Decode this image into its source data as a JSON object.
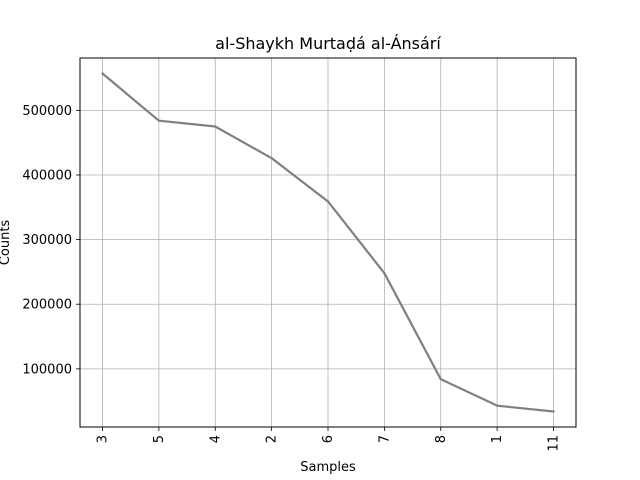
{
  "chart_data": {
    "type": "line",
    "title": "al-Shaykh Murtaḍá al-Ánsárí",
    "xlabel": "Samples",
    "ylabel": "Counts",
    "categories": [
      "3",
      "5",
      "4",
      "2",
      "6",
      "7",
      "8",
      "1",
      "11"
    ],
    "series": [
      {
        "values": [
          557000,
          484000,
          475000,
          426000,
          359000,
          248000,
          84000,
          43000,
          34000
        ]
      }
    ],
    "yticks": [
      100000,
      200000,
      300000,
      400000,
      500000
    ],
    "ylim": [
      10000,
      581000
    ],
    "grid": true,
    "x_tick_rotation": "vertical",
    "colors": {
      "line": "#808080",
      "grid": "#b0b0b0",
      "axis": "#000000"
    }
  }
}
